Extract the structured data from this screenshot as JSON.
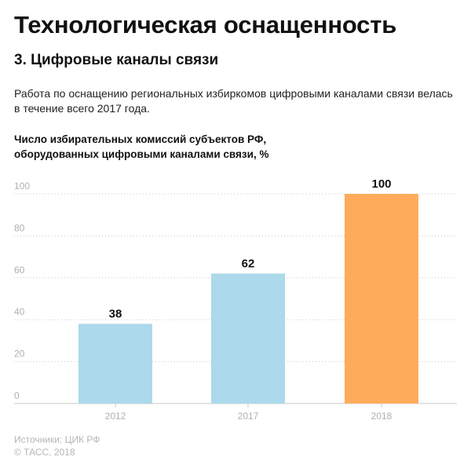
{
  "header": {
    "title": "Технологическая оснащенность",
    "section": "3. Цифровые каналы связи",
    "description": "Работа по оснащению региональных избиркомов цифровыми каналами связи велась в течение всего 2017 года.",
    "chart_title_line1": "Число избирательных комиссий субъектов РФ,",
    "chart_title_line2": "оборудованных цифровыми каналами связи, %"
  },
  "footer": {
    "sources": "Источники: ЦИК РФ",
    "copyright": "© ТАСС, 2018"
  },
  "colors": {
    "bar_default": "#acd9eb",
    "bar_highlight": "#ffab5c",
    "grid": "#c8c8c8",
    "axis_text": "#b0b0b0",
    "value_text": "#111111"
  },
  "chart_data": {
    "type": "bar",
    "title": "Число избирательных комиссий субъектов РФ, оборудованных цифровыми каналами связи, %",
    "categories": [
      "2012",
      "2017",
      "2018"
    ],
    "values": [
      38,
      62,
      100
    ],
    "value_labels": [
      "38",
      "62",
      "100"
    ],
    "highlight": [
      false,
      false,
      true
    ],
    "ylim": [
      0,
      100
    ],
    "yticks": [
      0,
      20,
      40,
      60,
      80,
      100
    ],
    "ytick_labels": [
      "0",
      "20",
      "40",
      "60",
      "80",
      "100"
    ],
    "grid": true,
    "xlabel": "",
    "ylabel": ""
  }
}
